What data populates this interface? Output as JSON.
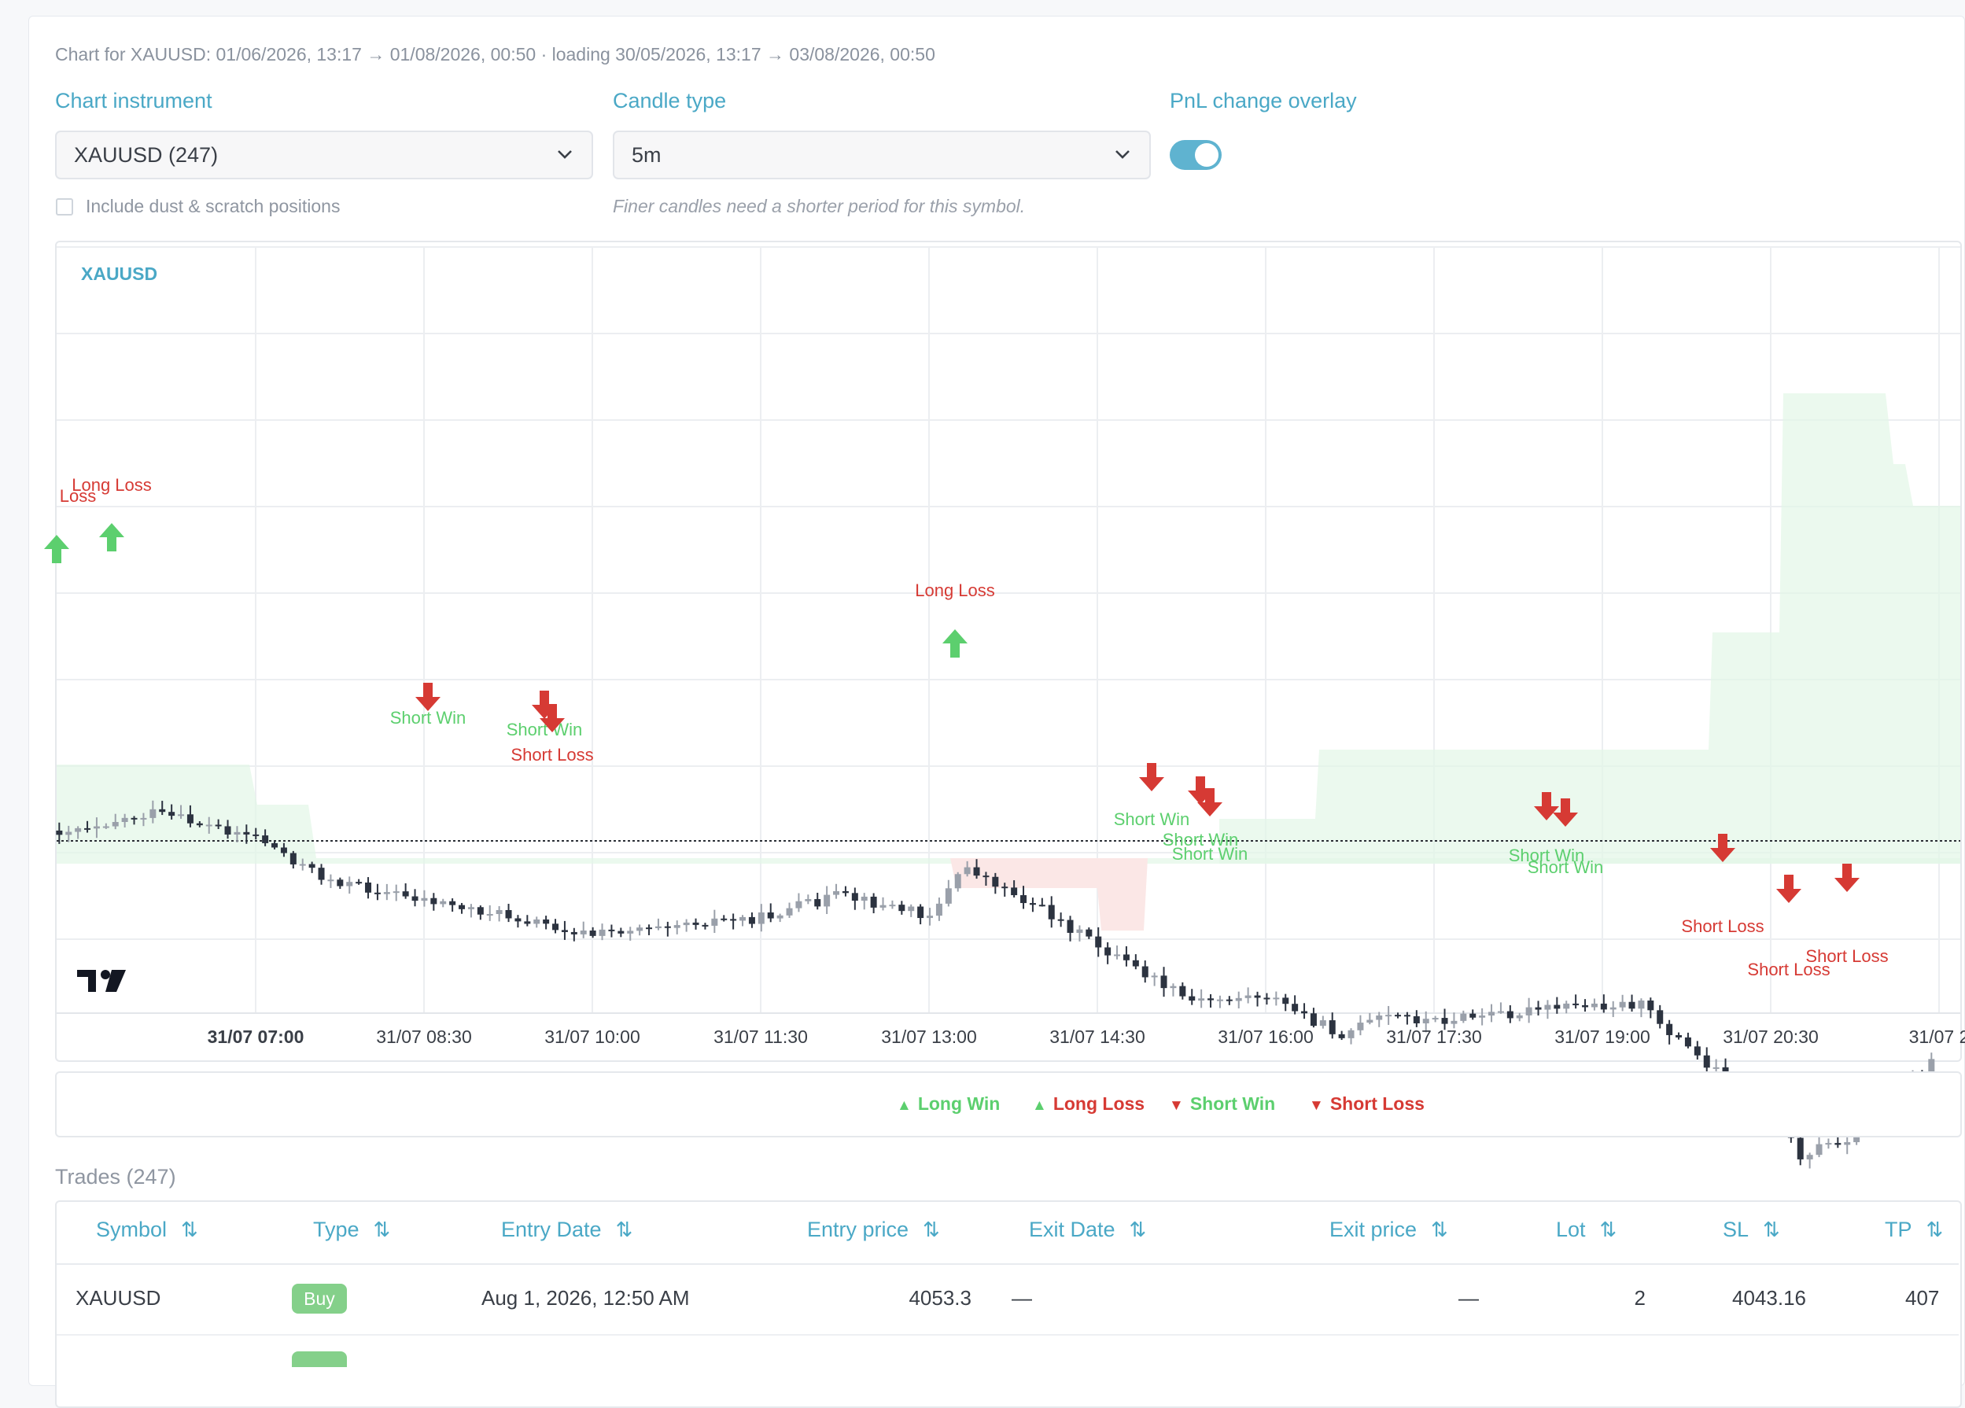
{
  "header": {
    "subtitle": "Chart for XAUUSD: 01/06/2026, 13:17 → 01/08/2026, 00:50 · loading 30/05/2026, 13:17 → 03/08/2026, 00:50"
  },
  "controls": {
    "instrument_label": "Chart instrument",
    "instrument_value": "XAUUSD (247)",
    "candle_label": "Candle type",
    "candle_value": "5m",
    "overlay_label": "PnL change overlay",
    "overlay_on": true,
    "dust_label": "Include dust & scratch positions",
    "dust_checked": false,
    "finer_hint": "Finer candles need a shorter period for this symbol."
  },
  "chart_data": {
    "type": "candlestick",
    "symbol": "XAUUSD",
    "x_ticks": [
      "31/07 07:00",
      "31/07 08:30",
      "31/07 10:00",
      "31/07 11:30",
      "31/07 13:00",
      "31/07 14:30",
      "31/07 16:00",
      "31/07 17:30",
      "31/07 19:00",
      "31/07 20:30",
      "31/07 2"
    ],
    "close_path": [
      [
        "31/07 05:15",
        0.6
      ],
      [
        "31/07 06:05",
        1.6
      ],
      [
        "31/07 07:00",
        0.3
      ],
      [
        "31/07 07:35",
        -2.1
      ],
      [
        "31/07 08:00",
        -2.8
      ],
      [
        "31/07 08:30",
        -3.4
      ],
      [
        "31/07 09:25",
        -4.6
      ],
      [
        "31/07 10:00",
        -5.5
      ],
      [
        "31/07 10:35",
        -4.8
      ],
      [
        "31/07 11:30",
        -4.5
      ],
      [
        "31/07 12:10",
        -3.2
      ],
      [
        "31/07 13:00",
        -4.3
      ],
      [
        "31/07 13:20",
        -1.5
      ],
      [
        "31/07 14:05",
        -4.3
      ],
      [
        "31/07 14:30",
        -6.1
      ],
      [
        "31/07 15:20",
        -9.4
      ],
      [
        "31/07 16:00",
        -9.0
      ],
      [
        "31/07 16:40",
        -11.3
      ],
      [
        "31/07 17:05",
        -10.2
      ],
      [
        "31/07 17:30",
        -10.5
      ],
      [
        "31/07 18:50",
        -9.6
      ],
      [
        "31/07 19:20",
        -9.5
      ],
      [
        "31/07 19:50",
        -12.5
      ],
      [
        "31/07 20:30",
        -15.6
      ],
      [
        "31/07 20:45",
        -18.3
      ],
      [
        "31/07 21:10",
        -17.4
      ],
      [
        "31/07 21:40",
        -14.2
      ],
      [
        "31/07 22:00",
        -12.7
      ]
    ],
    "pnl_overlay": {
      "profit_regions": 2,
      "loss_regions": 1
    },
    "markers": [
      {
        "label": "Loss",
        "kind": "long-loss"
      },
      {
        "label": "Long Loss",
        "kind": "long-loss"
      },
      {
        "label": "Short Win",
        "kind": "short-win"
      },
      {
        "label": "Short Win",
        "kind": "short-win"
      },
      {
        "label": "Short Loss",
        "kind": "short-loss"
      },
      {
        "label": "Long Loss",
        "kind": "long-loss"
      },
      {
        "label": "Short Win",
        "kind": "short-win"
      },
      {
        "label": "Short Win",
        "kind": "short-win"
      },
      {
        "label": "Short Win",
        "kind": "short-win"
      },
      {
        "label": "Short Win",
        "kind": "short-win"
      },
      {
        "label": "Short Win",
        "kind": "short-win"
      },
      {
        "label": "Short Loss",
        "kind": "short-loss"
      },
      {
        "label": "Short Loss",
        "kind": "short-loss"
      },
      {
        "label": "Short Loss",
        "kind": "short-loss"
      }
    ]
  },
  "legend": [
    {
      "label": "Long Win",
      "symbol": "▲",
      "color": "#5ccf6e"
    },
    {
      "label": "Long Loss",
      "symbol": "▲",
      "color": "#d63a34"
    },
    {
      "label": "Short Win",
      "symbol": "▼",
      "color": "#5ccf6e"
    },
    {
      "label": "Short Loss",
      "symbol": "▼",
      "color": "#d63a34"
    }
  ],
  "colors": {
    "accent": "#4aa8c6",
    "win": "#5ccf6e",
    "loss": "#d63a34",
    "candle_up": "#9aa0aa",
    "candle_down": "#2c3340"
  },
  "trades": {
    "title": "Trades (247)",
    "columns": [
      "Symbol",
      "Type",
      "Entry Date",
      "Entry price",
      "Exit Date",
      "Exit price",
      "Lot",
      "SL",
      "TP"
    ],
    "sort_icon": "⇅",
    "rows": [
      {
        "symbol": "XAUUSD",
        "type": "Buy",
        "entry_date": "Aug 1, 2026, 12:50 AM",
        "entry_price": "4053.3",
        "exit_date": "—",
        "exit_price": "—",
        "lot": "2",
        "sl": "4043.16",
        "tp": "407"
      }
    ]
  },
  "icons": {
    "chevron": "chevron-down-icon",
    "tv_logo": "17"
  }
}
